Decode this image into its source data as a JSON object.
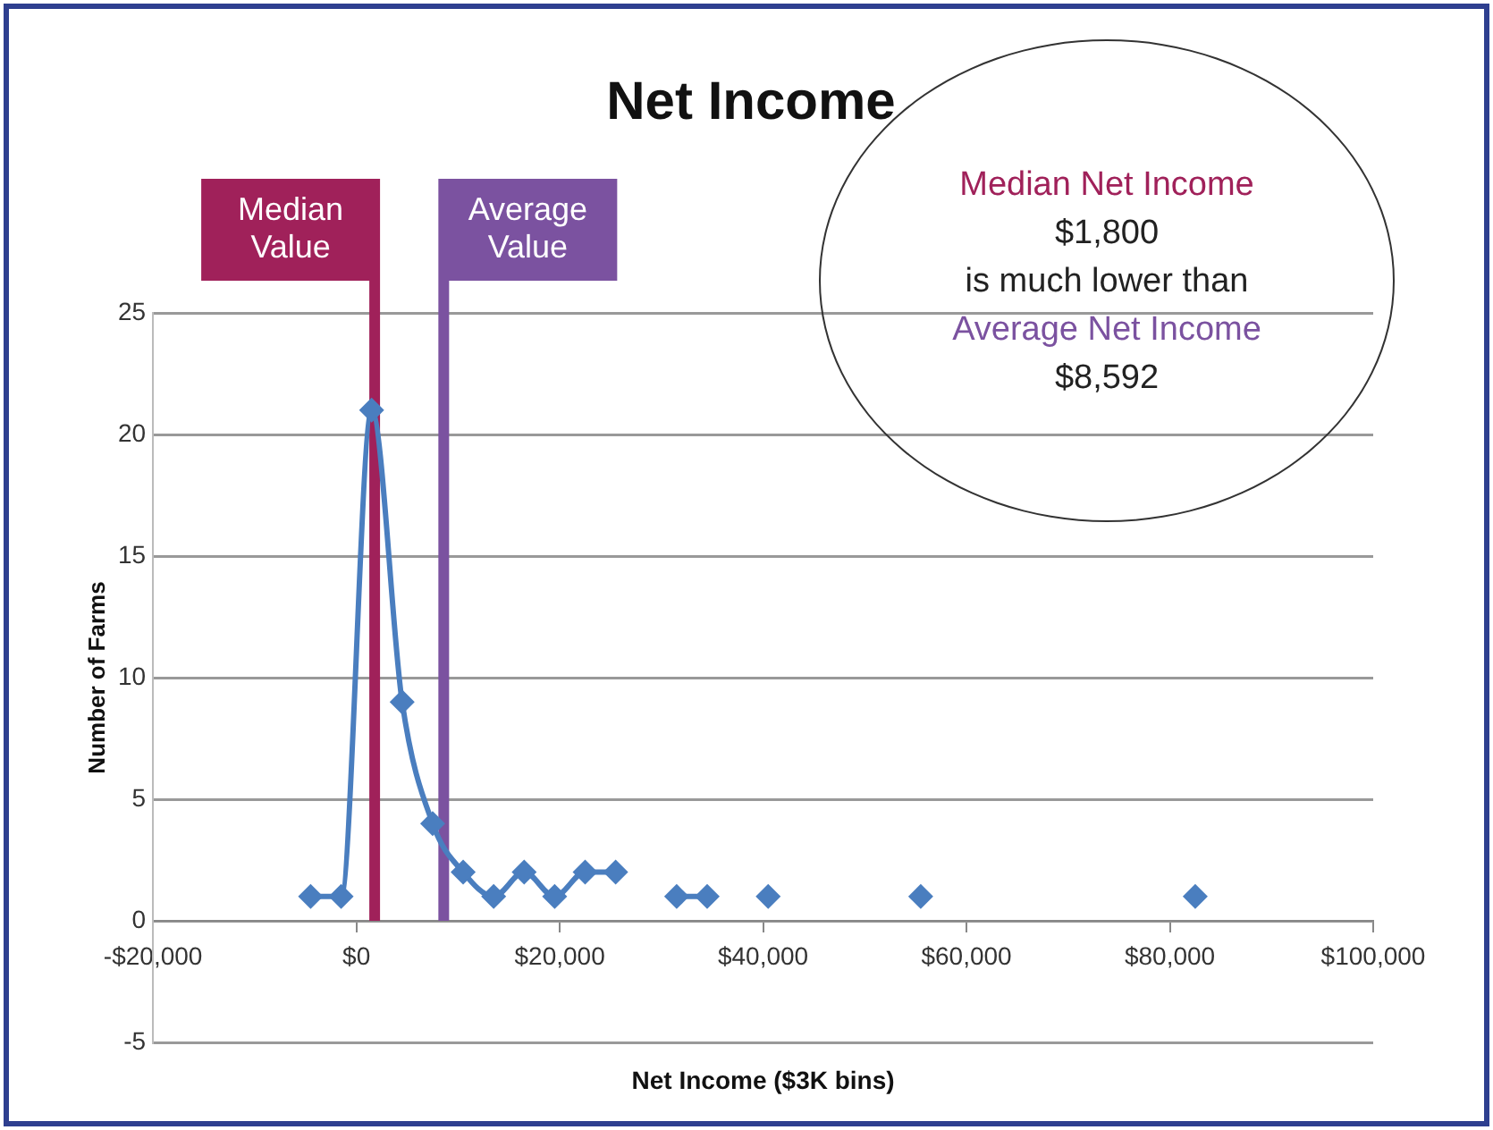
{
  "chart_data": {
    "type": "line",
    "title": "Net Income",
    "xlabel": "Net Income ($3K bins)",
    "ylabel": "Number of Farms",
    "x": [
      -4500,
      -1500,
      1500,
      4500,
      7500,
      10500,
      13500,
      16500,
      19500,
      22500,
      25500,
      28500,
      31500,
      34500,
      37500,
      40500,
      43500,
      55500,
      58500,
      82500
    ],
    "series": [
      {
        "color": "#4a7ebf",
        "values": [
          1,
          1,
          21,
          9,
          4,
          2,
          1,
          2,
          1,
          2,
          2,
          null,
          1,
          1,
          null,
          1,
          null,
          1,
          null,
          1
        ]
      }
    ],
    "xlim": [
      -20000,
      100000
    ],
    "xticks": [
      {
        "value": -20000,
        "label": "-$20,000"
      },
      {
        "value": 0,
        "label": "$0"
      },
      {
        "value": 20000,
        "label": "$20,000"
      },
      {
        "value": 40000,
        "label": "$40,000"
      },
      {
        "value": 60000,
        "label": "$60,000"
      },
      {
        "value": 80000,
        "label": "$80,000"
      },
      {
        "value": 100000,
        "label": "$100,000"
      }
    ],
    "ylim": [
      -5,
      25
    ],
    "yticks": [
      -5,
      0,
      5,
      10,
      15,
      20,
      25
    ],
    "grid": "y",
    "legend": false,
    "marker": "diamond",
    "line_style": "solid",
    "ref_lines": [
      {
        "axis": "x",
        "value": 1800,
        "label": "Median Value",
        "color": "#a0215a"
      },
      {
        "axis": "x",
        "value": 8592,
        "label": "Average Value",
        "color": "#7b52a0"
      }
    ],
    "annotations": [
      "Median Net Income",
      "$1,800",
      "is much lower than",
      "Average Net Income",
      "$8,592"
    ]
  }
}
